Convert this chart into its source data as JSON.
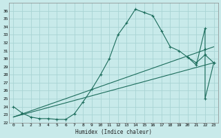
{
  "xlabel": "Humidex (Indice chaleur)",
  "bg_color": "#c8eaea",
  "line_color": "#1a6b5a",
  "grid_color": "#a8d4d4",
  "xlim": [
    -0.5,
    23.5
  ],
  "ylim": [
    22,
    37
  ],
  "yticks": [
    22,
    23,
    24,
    25,
    26,
    27,
    28,
    29,
    30,
    31,
    32,
    33,
    34,
    35,
    36
  ],
  "xticks": [
    0,
    1,
    2,
    3,
    4,
    5,
    6,
    7,
    8,
    9,
    10,
    11,
    12,
    13,
    14,
    15,
    16,
    17,
    18,
    19,
    20,
    21,
    22,
    23
  ],
  "main_x": [
    0,
    1,
    2,
    3,
    4,
    5,
    6,
    7,
    8,
    9,
    10,
    11,
    12,
    13,
    14,
    15,
    16,
    17,
    18,
    19,
    20,
    21,
    22,
    23
  ],
  "main_y": [
    24.0,
    23.2,
    22.7,
    22.5,
    22.5,
    22.4,
    22.4,
    23.1,
    24.6,
    26.2,
    28.0,
    30.0,
    33.0,
    34.5,
    36.2,
    35.8,
    35.4,
    33.5,
    31.5,
    31.0,
    30.2,
    29.5,
    30.5,
    29.5
  ],
  "line2_x": [
    0,
    23
  ],
  "line2_y": [
    22.7,
    31.5
  ],
  "line3_x": [
    0,
    23
  ],
  "line3_y": [
    22.7,
    29.5
  ],
  "extra_x": [
    20,
    21,
    22,
    22,
    22,
    23
  ],
  "extra_y": [
    30.2,
    29.2,
    33.8,
    31.2,
    25.0,
    29.5
  ],
  "marker": "+"
}
